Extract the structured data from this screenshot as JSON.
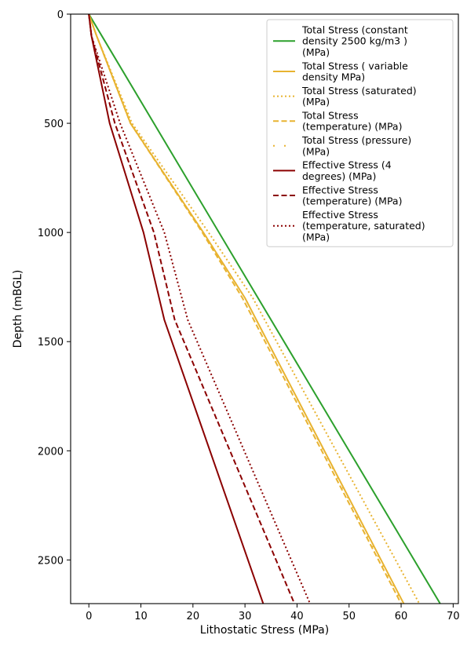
{
  "chart_data": {
    "type": "line",
    "xlabel": "Lithostatic Stress (MPa)",
    "ylabel": "Depth (mBGL)",
    "xlim": [
      -3.5,
      71
    ],
    "ylim": [
      0,
      2700
    ],
    "y_inverted": true,
    "grid": false,
    "legend_placement": "upper-right",
    "xticks": [
      "0",
      "10",
      "20",
      "30",
      "40",
      "50",
      "60",
      "70"
    ],
    "yticks": [
      "0",
      "500",
      "1000",
      "1500",
      "2000",
      "2500"
    ],
    "series": [
      {
        "name": "Total Stress (constant density 2500 kg/m3 ) (MPa)",
        "legend_lines": [
          "Total Stress (constant",
          "density 2500 kg/m3 )",
          "(MPa)"
        ],
        "color": "#2ca02c",
        "dash": "solid",
        "x": [
          0,
          67.5
        ],
        "y": [
          0,
          2700
        ]
      },
      {
        "name": "Total Stress ( variable density MPa)",
        "legend_lines": [
          "Total Stress ( variable",
          "density MPa)"
        ],
        "color": "#e8b330",
        "dash": "solid",
        "x": [
          0,
          1.5,
          8,
          22,
          30,
          60.5
        ],
        "y": [
          0,
          100,
          500,
          1000,
          1300,
          2700
        ]
      },
      {
        "name": "Total Stress (saturated) (MPa)",
        "legend_lines": [
          "Total Stress (saturated)",
          "(MPa)"
        ],
        "color": "#e8b330",
        "dash": "dotted",
        "x": [
          0,
          1.5,
          8.3,
          23,
          31.5,
          63.5
        ],
        "y": [
          0,
          100,
          500,
          1000,
          1300,
          2700
        ]
      },
      {
        "name": "Total Stress (temperature) (MPa)",
        "legend_lines": [
          "Total Stress",
          "(temperature) (MPa)"
        ],
        "color": "#e8b330",
        "dash": "dashed",
        "x": [
          0,
          1.5,
          8,
          21.8,
          29.5,
          60
        ],
        "y": [
          0,
          100,
          500,
          1000,
          1300,
          2700
        ]
      },
      {
        "name": "Total Stress (pressure) (MPa)",
        "legend_lines": [
          "Total Stress (pressure)",
          "(MPa)"
        ],
        "color": "#e8b330",
        "dash": "sparse-dotted",
        "x": [
          0,
          1.5,
          8,
          22,
          30,
          60.3
        ],
        "y": [
          0,
          100,
          500,
          1000,
          1300,
          2700
        ]
      },
      {
        "name": "Effective Stress (4 degrees) (MPa)",
        "legend_lines": [
          "Effective Stress (4",
          "degrees) (MPa)"
        ],
        "color": "#8b0000",
        "dash": "solid",
        "x": [
          0,
          0.5,
          4,
          10.5,
          14.5,
          33.5
        ],
        "y": [
          0,
          100,
          500,
          1000,
          1400,
          2700
        ]
      },
      {
        "name": "Effective Stress (temperature) (MPa)",
        "legend_lines": [
          "Effective Stress",
          "(temperature) (MPa)"
        ],
        "color": "#8b0000",
        "dash": "dashed",
        "x": [
          0,
          0.5,
          5,
          12.5,
          16.5,
          39.5
        ],
        "y": [
          0,
          100,
          500,
          1000,
          1400,
          2700
        ]
      },
      {
        "name": "Effective Stress (temperature, saturated) (MPa)",
        "legend_lines": [
          "Effective Stress",
          "(temperature, saturated)",
          "(MPa)"
        ],
        "color": "#8b0000",
        "dash": "dotted",
        "x": [
          0,
          0.5,
          6,
          14.5,
          19,
          42.5
        ],
        "y": [
          0,
          100,
          500,
          1000,
          1400,
          2700
        ]
      }
    ]
  }
}
